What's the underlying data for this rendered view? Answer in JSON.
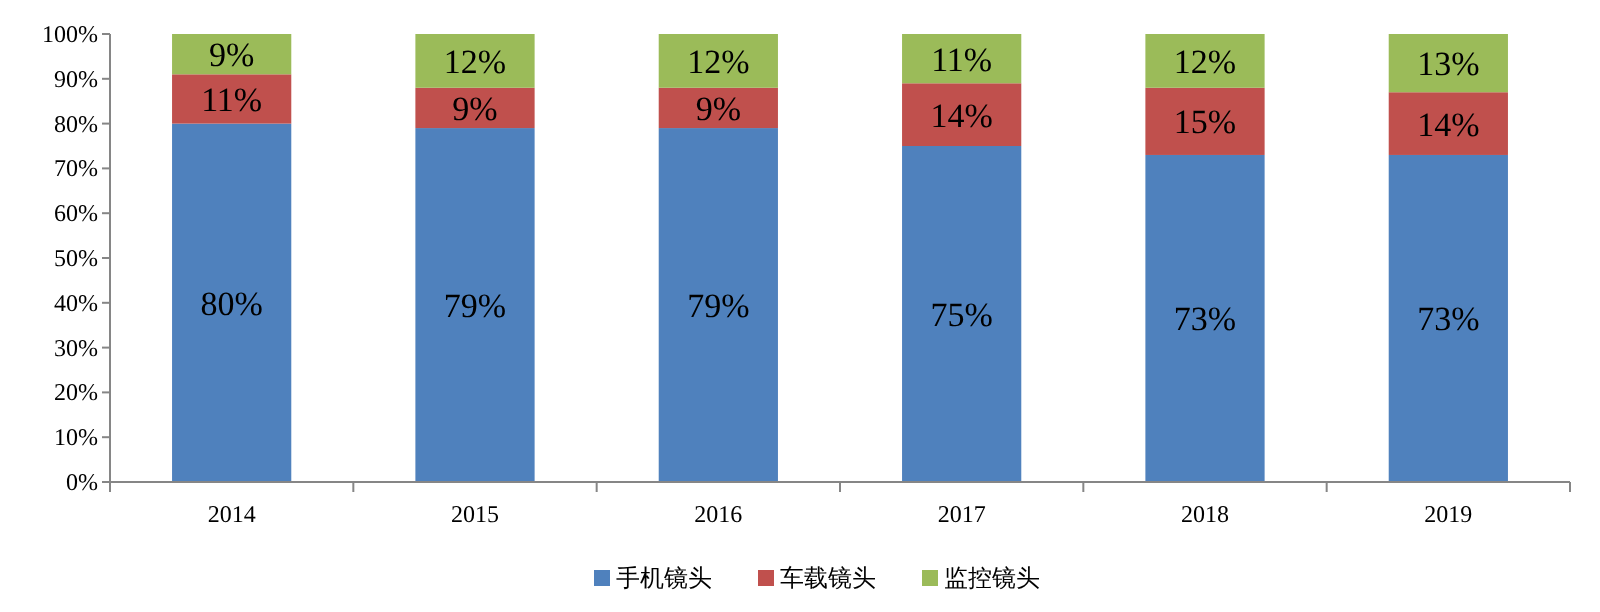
{
  "chart_data": {
    "type": "bar",
    "stacked": true,
    "categories": [
      "2014",
      "2015",
      "2016",
      "2017",
      "2018",
      "2019"
    ],
    "series": [
      {
        "name": "手机镜头",
        "color": "#4f81bd",
        "values": [
          80,
          79,
          79,
          75,
          73,
          73
        ],
        "value_labels": [
          "80%",
          "79%",
          "79%",
          "75%",
          "73%",
          "73%"
        ]
      },
      {
        "name": "车载镜头",
        "color": "#c0504d",
        "values": [
          11,
          9,
          9,
          14,
          15,
          14
        ],
        "value_labels": [
          "11%",
          "9%",
          "9%",
          "14%",
          "15%",
          "14%"
        ]
      },
      {
        "name": "监控镜头",
        "color": "#9bbb59",
        "values": [
          9,
          12,
          12,
          11,
          12,
          13
        ],
        "value_labels": [
          "9%",
          "12%",
          "12%",
          "11%",
          "12%",
          "13%"
        ]
      }
    ],
    "ylim": [
      0,
      100
    ],
    "yticks": [
      {
        "value": 0,
        "label": "0%"
      },
      {
        "value": 10,
        "label": "10%"
      },
      {
        "value": 20,
        "label": "20%"
      },
      {
        "value": 30,
        "label": "30%"
      },
      {
        "value": 40,
        "label": "40%"
      },
      {
        "value": 50,
        "label": "50%"
      },
      {
        "value": 60,
        "label": "60%"
      },
      {
        "value": 70,
        "label": "70%"
      },
      {
        "value": 80,
        "label": "80%"
      },
      {
        "value": 90,
        "label": "90%"
      },
      {
        "value": 100,
        "label": "100%"
      }
    ],
    "legend": "bottom"
  }
}
